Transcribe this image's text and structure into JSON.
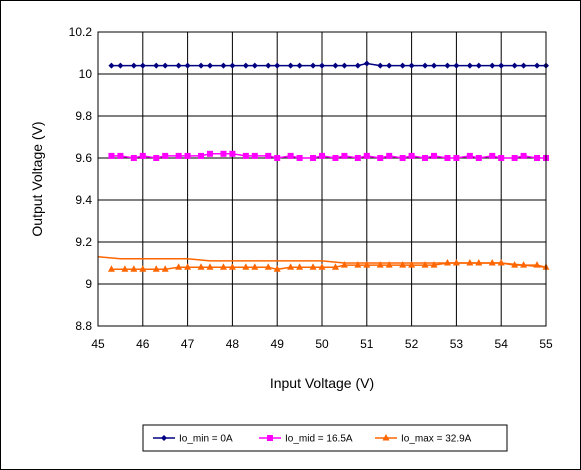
{
  "chart_data": {
    "type": "line",
    "title": "",
    "xlabel": "Input Voltage (V)",
    "ylabel": "Output Voltage (V)",
    "xlim": [
      45,
      55
    ],
    "ylim": [
      8.8,
      10.2
    ],
    "x_ticks": [
      "45",
      "46",
      "47",
      "48",
      "49",
      "50",
      "51",
      "52",
      "53",
      "54",
      "55"
    ],
    "y_ticks": [
      "8.8",
      "9",
      "9.2",
      "9.4",
      "9.6",
      "9.8",
      "10",
      "10.2"
    ],
    "grid": true,
    "legend_position": "bottom",
    "series": [
      {
        "name": "Io_min = 0A",
        "color": "#000080",
        "marker": "diamond",
        "points": [
          [
            45.3,
            10.04
          ],
          [
            45.5,
            10.04
          ],
          [
            45.8,
            10.04
          ],
          [
            46.0,
            10.04
          ],
          [
            46.3,
            10.04
          ],
          [
            46.5,
            10.04
          ],
          [
            46.8,
            10.04
          ],
          [
            47.0,
            10.04
          ],
          [
            47.3,
            10.04
          ],
          [
            47.5,
            10.04
          ],
          [
            47.8,
            10.04
          ],
          [
            48.0,
            10.04
          ],
          [
            48.3,
            10.04
          ],
          [
            48.5,
            10.04
          ],
          [
            48.8,
            10.04
          ],
          [
            49.0,
            10.04
          ],
          [
            49.3,
            10.04
          ],
          [
            49.5,
            10.04
          ],
          [
            49.8,
            10.04
          ],
          [
            50.0,
            10.04
          ],
          [
            50.3,
            10.04
          ],
          [
            50.5,
            10.04
          ],
          [
            50.8,
            10.04
          ],
          [
            51.0,
            10.05
          ],
          [
            51.3,
            10.04
          ],
          [
            51.5,
            10.04
          ],
          [
            51.8,
            10.04
          ],
          [
            52.0,
            10.04
          ],
          [
            52.3,
            10.04
          ],
          [
            52.5,
            10.04
          ],
          [
            52.8,
            10.04
          ],
          [
            53.0,
            10.04
          ],
          [
            53.3,
            10.04
          ],
          [
            53.5,
            10.04
          ],
          [
            53.8,
            10.04
          ],
          [
            54.0,
            10.04
          ],
          [
            54.3,
            10.04
          ],
          [
            54.5,
            10.04
          ],
          [
            54.8,
            10.04
          ],
          [
            55.0,
            10.04
          ]
        ]
      },
      {
        "name": "Io_mid = 16.5A",
        "color": "#ff00ff",
        "marker": "square",
        "points": [
          [
            45.3,
            9.61
          ],
          [
            45.5,
            9.61
          ],
          [
            45.8,
            9.6
          ],
          [
            46.0,
            9.61
          ],
          [
            46.3,
            9.6
          ],
          [
            46.5,
            9.61
          ],
          [
            46.8,
            9.61
          ],
          [
            47.0,
            9.61
          ],
          [
            47.3,
            9.61
          ],
          [
            47.5,
            9.62
          ],
          [
            47.8,
            9.62
          ],
          [
            48.0,
            9.62
          ],
          [
            48.3,
            9.61
          ],
          [
            48.5,
            9.61
          ],
          [
            48.8,
            9.61
          ],
          [
            49.0,
            9.6
          ],
          [
            49.3,
            9.61
          ],
          [
            49.5,
            9.6
          ],
          [
            49.8,
            9.6
          ],
          [
            50.0,
            9.61
          ],
          [
            50.3,
            9.6
          ],
          [
            50.5,
            9.61
          ],
          [
            50.8,
            9.6
          ],
          [
            51.0,
            9.61
          ],
          [
            51.3,
            9.6
          ],
          [
            51.5,
            9.61
          ],
          [
            51.8,
            9.6
          ],
          [
            52.0,
            9.61
          ],
          [
            52.3,
            9.6
          ],
          [
            52.5,
            9.61
          ],
          [
            52.8,
            9.6
          ],
          [
            53.0,
            9.6
          ],
          [
            53.3,
            9.61
          ],
          [
            53.5,
            9.6
          ],
          [
            53.8,
            9.61
          ],
          [
            54.0,
            9.6
          ],
          [
            54.3,
            9.6
          ],
          [
            54.5,
            9.61
          ],
          [
            54.8,
            9.6
          ],
          [
            55.0,
            9.6
          ]
        ]
      },
      {
        "name": "Io_max = 32.9A",
        "color": "#ff6600",
        "marker": "triangle",
        "points": [
          [
            45.3,
            9.07
          ],
          [
            45.6,
            9.07
          ],
          [
            45.8,
            9.07
          ],
          [
            46.0,
            9.07
          ],
          [
            46.3,
            9.07
          ],
          [
            46.5,
            9.07
          ],
          [
            46.8,
            9.08
          ],
          [
            47.0,
            9.08
          ],
          [
            47.3,
            9.08
          ],
          [
            47.5,
            9.08
          ],
          [
            47.8,
            9.08
          ],
          [
            48.0,
            9.08
          ],
          [
            48.3,
            9.08
          ],
          [
            48.5,
            9.08
          ],
          [
            48.8,
            9.08
          ],
          [
            49.0,
            9.07
          ],
          [
            49.3,
            9.08
          ],
          [
            49.5,
            9.08
          ],
          [
            49.8,
            9.08
          ],
          [
            50.0,
            9.08
          ],
          [
            50.3,
            9.08
          ],
          [
            50.5,
            9.09
          ],
          [
            50.8,
            9.09
          ],
          [
            51.0,
            9.09
          ],
          [
            51.3,
            9.09
          ],
          [
            51.5,
            9.09
          ],
          [
            51.8,
            9.09
          ],
          [
            52.0,
            9.09
          ],
          [
            52.3,
            9.09
          ],
          [
            52.5,
            9.09
          ],
          [
            52.8,
            9.1
          ],
          [
            53.0,
            9.1
          ],
          [
            53.3,
            9.1
          ],
          [
            53.5,
            9.1
          ],
          [
            53.8,
            9.1
          ],
          [
            54.0,
            9.1
          ],
          [
            54.3,
            9.09
          ],
          [
            54.5,
            9.09
          ],
          [
            54.8,
            9.09
          ],
          [
            55.0,
            9.08
          ]
        ],
        "points_second_sweep": [
          [
            45.0,
            9.13
          ],
          [
            45.5,
            9.12
          ],
          [
            46.0,
            9.12
          ],
          [
            46.5,
            9.12
          ],
          [
            47.0,
            9.12
          ],
          [
            47.5,
            9.11
          ],
          [
            48.0,
            9.11
          ],
          [
            48.5,
            9.11
          ],
          [
            49.0,
            9.11
          ],
          [
            49.5,
            9.11
          ],
          [
            50.0,
            9.11
          ],
          [
            50.5,
            9.1
          ],
          [
            51.0,
            9.1
          ],
          [
            51.5,
            9.1
          ],
          [
            52.0,
            9.1
          ],
          [
            52.5,
            9.1
          ],
          [
            53.0,
            9.1
          ],
          [
            53.5,
            9.1
          ],
          [
            54.0,
            9.1
          ],
          [
            54.5,
            9.09
          ],
          [
            55.0,
            9.08
          ]
        ]
      }
    ]
  }
}
